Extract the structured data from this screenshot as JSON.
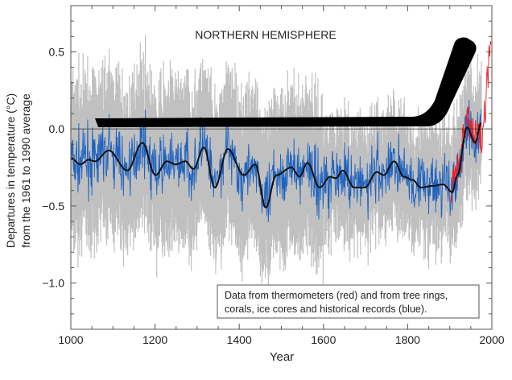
{
  "chart_data": {
    "type": "line",
    "title": "NORTHERN HEMISPHERE",
    "xlabel": "Year",
    "ylabel": [
      "Departures in temperature (°C)",
      "from the 1961 to 1990 average"
    ],
    "xlim": [
      1000,
      2000
    ],
    "ylim": [
      -1.3,
      0.8
    ],
    "x_ticks": [
      1000,
      1200,
      1400,
      1600,
      1800,
      2000
    ],
    "x_tick_labels": [
      "1000",
      "1200",
      "1400",
      "1600",
      "1800",
      "2000"
    ],
    "y_ticks": [
      0.5,
      0.0,
      -0.5,
      -1.0
    ],
    "y_tick_labels": [
      "0.5",
      "0.0",
      "−0.5",
      "−1.0"
    ],
    "reference_line": 0.0,
    "legend_text": [
      "Data from thermometers (red) and from tree rings,",
      "corals, ice cores and historical records (blue)."
    ],
    "legend_placement": "bottom-right",
    "colors": {
      "proxy": "#1f63c0",
      "thermometer": "#e8202a",
      "uncertainty": "#c0c0c0",
      "smoothed": "#111111",
      "hockey_stick": "#000000"
    },
    "series": [
      {
        "role": "smoothed",
        "x": [
          1000,
          1023,
          1042,
          1057,
          1090,
          1134,
          1170,
          1201,
          1228,
          1249,
          1272,
          1291,
          1316,
          1342,
          1373,
          1411,
          1438,
          1463,
          1488,
          1524,
          1543,
          1562,
          1591,
          1616,
          1629,
          1646,
          1673,
          1698,
          1727,
          1743,
          1768,
          1791,
          1811,
          1832,
          1858,
          1884,
          1906,
          1918,
          1941,
          1960,
          1975
        ],
        "y": [
          -0.19,
          -0.23,
          -0.2,
          -0.21,
          -0.14,
          -0.27,
          -0.09,
          -0.3,
          -0.21,
          -0.23,
          -0.21,
          -0.26,
          -0.12,
          -0.38,
          -0.13,
          -0.3,
          -0.23,
          -0.51,
          -0.3,
          -0.25,
          -0.31,
          -0.22,
          -0.38,
          -0.31,
          -0.32,
          -0.27,
          -0.38,
          -0.38,
          -0.28,
          -0.3,
          -0.21,
          -0.31,
          -0.33,
          -0.38,
          -0.37,
          -0.36,
          -0.41,
          -0.3,
          0.01,
          -0.09,
          0.04
        ]
      },
      {
        "role": "thermometer",
        "x": [
          1902,
          1920,
          1940,
          1960,
          1975,
          1985,
          1990,
          1998
        ],
        "y": [
          -0.4,
          -0.25,
          0.05,
          -0.05,
          -0.05,
          0.15,
          0.35,
          0.65
        ]
      }
    ]
  }
}
